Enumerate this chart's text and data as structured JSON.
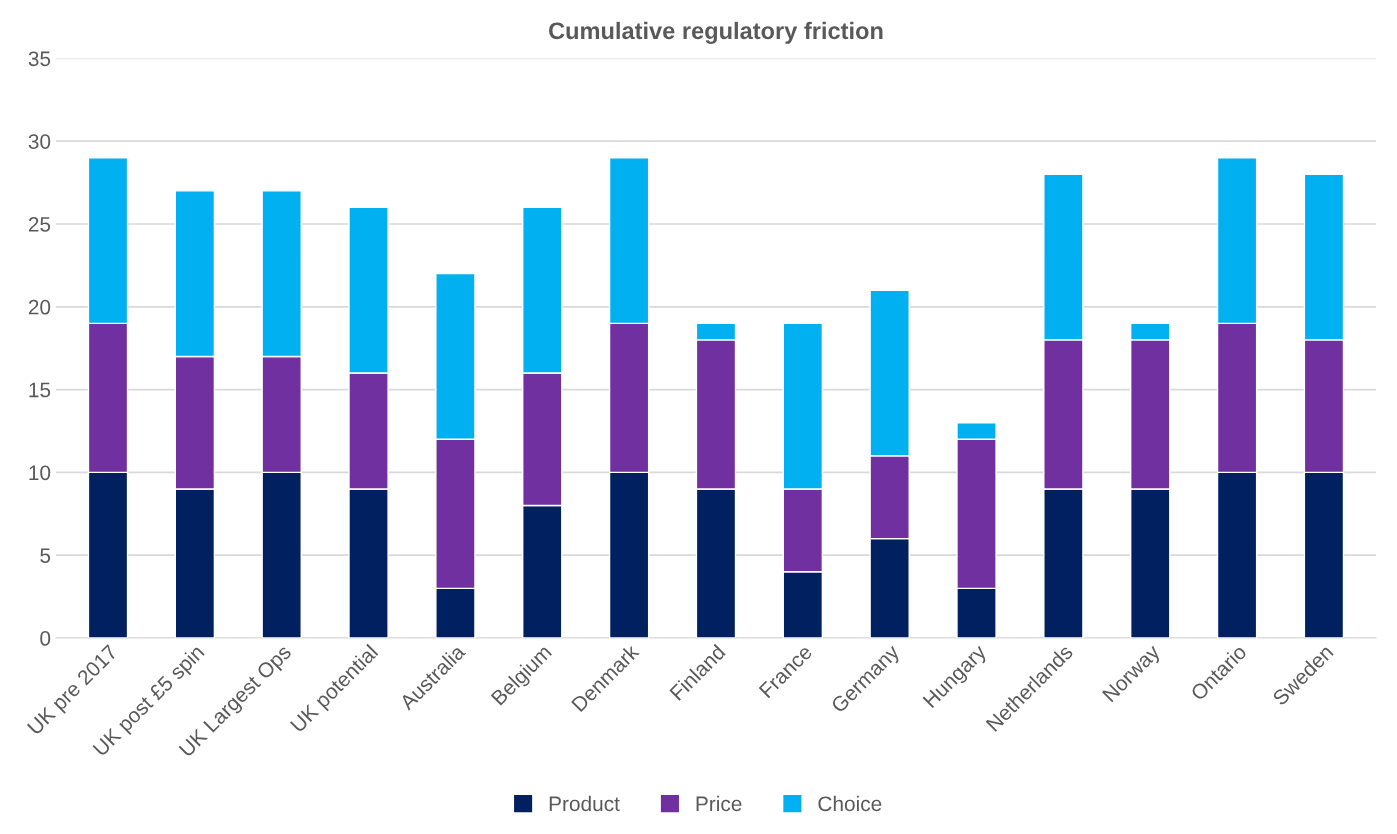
{
  "chart_data": {
    "type": "bar",
    "title": "Cumulative regulatory friction",
    "stacked": true,
    "categories": [
      "UK pre 2017",
      "UK post £5 spin",
      "UK Largest Ops",
      "UK potential",
      "Australia",
      "Belgium",
      "Denmark",
      "Finland",
      "France",
      "Germany",
      "Hungary",
      "Netherlands",
      "Norway",
      "Ontario",
      "Sweden"
    ],
    "series": [
      {
        "name": "Product",
        "color": "#002060",
        "values": [
          10,
          9,
          10,
          9,
          3,
          8,
          10,
          9,
          4,
          6,
          3,
          9,
          9,
          10,
          10
        ]
      },
      {
        "name": "Price",
        "color": "#7030a0",
        "values": [
          9,
          8,
          7,
          7,
          9,
          8,
          9,
          9,
          5,
          5,
          9,
          9,
          9,
          9,
          8
        ]
      },
      {
        "name": "Choice",
        "color": "#00b0f0",
        "values": [
          10,
          10,
          10,
          10,
          10,
          10,
          10,
          1,
          10,
          10,
          1,
          10,
          1,
          10,
          10
        ]
      }
    ],
    "ylim": [
      0,
      35
    ],
    "yticks": [
      0,
      5,
      10,
      15,
      20,
      25,
      30,
      35
    ],
    "grid": "y",
    "legend": "bottom"
  }
}
